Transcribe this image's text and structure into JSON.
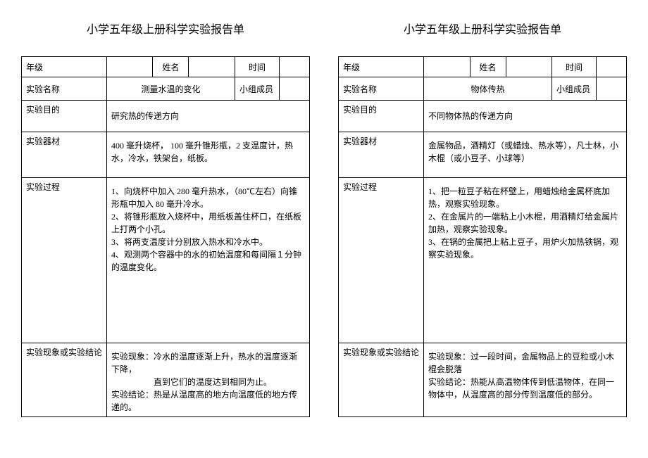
{
  "reports": [
    {
      "title": "小学五年级上册科学实验报告单",
      "labels": {
        "grade": "年级",
        "name": "姓名",
        "time": "时间",
        "expName": "实验名称",
        "group": "小组成员",
        "purpose": "实验目的",
        "equip": "实验器材",
        "process": "实验过程",
        "result": "实验现象或实验结论"
      },
      "values": {
        "expName": "测量水温的变化",
        "purpose": "研究热的传递方向",
        "equip": "400 毫升烧杯，  100 毫升锥形瓶，2 支温度计，热水，冷水，铁架台，纸板。",
        "process": "1、向烧杯中加入 280 毫升热水，（80℃左右）向锥形瓶中加入 80 毫升冷水。\n2、将锥形瓶放入烧杯中，用纸板盖住杯口，在纸板上打两个小孔。\n3、将两支温度计分别放入热水和冷水中。\n4、观测两个容器中的水的初始温度和每间隔１分钟的温度变化。",
        "result": "实验现象：冷水的温度逐渐上升，热水的温度逐渐下降，\n　　　　　直到它们的温度达到相同为止。\n实验结论：热是从温度高的地方向温度低的地方传递的。"
      }
    },
    {
      "title": "小学五年级上册科学实验报告单",
      "labels": {
        "grade": "年级",
        "name": "姓名",
        "time": "时间",
        "expName": "实验名称",
        "group": "小组成员",
        "purpose": "实验目的",
        "equip": "实验器材",
        "process": "实验过程",
        "result": "实验现象或实验结论"
      },
      "values": {
        "expName": "物体传热",
        "purpose": "不同物体热的传递方向",
        "equip": "金属物品，酒精灯（或蜡烛、热水等），凡士林，小木棍（或小豆子、小球等）",
        "process": "1、把一粒豆子粘在杯壁上，用蜡烛给金属杯底加热，观察实验现象。\n2、在金属片的一端粘上小木棍，用酒精灯给金属片加热，观察实验现象。\n3、在锅的金属把上粘上豆子，用炉火加热铁锅，观察实验现象。",
        "result": "实验现象：过一段时间，金属物品上的豆粒或小木棍会脱落\n实验结论：热能从高温物体传到低温物体，在同一物体中，从温度高的部分传到温度低的部分。"
      }
    }
  ]
}
